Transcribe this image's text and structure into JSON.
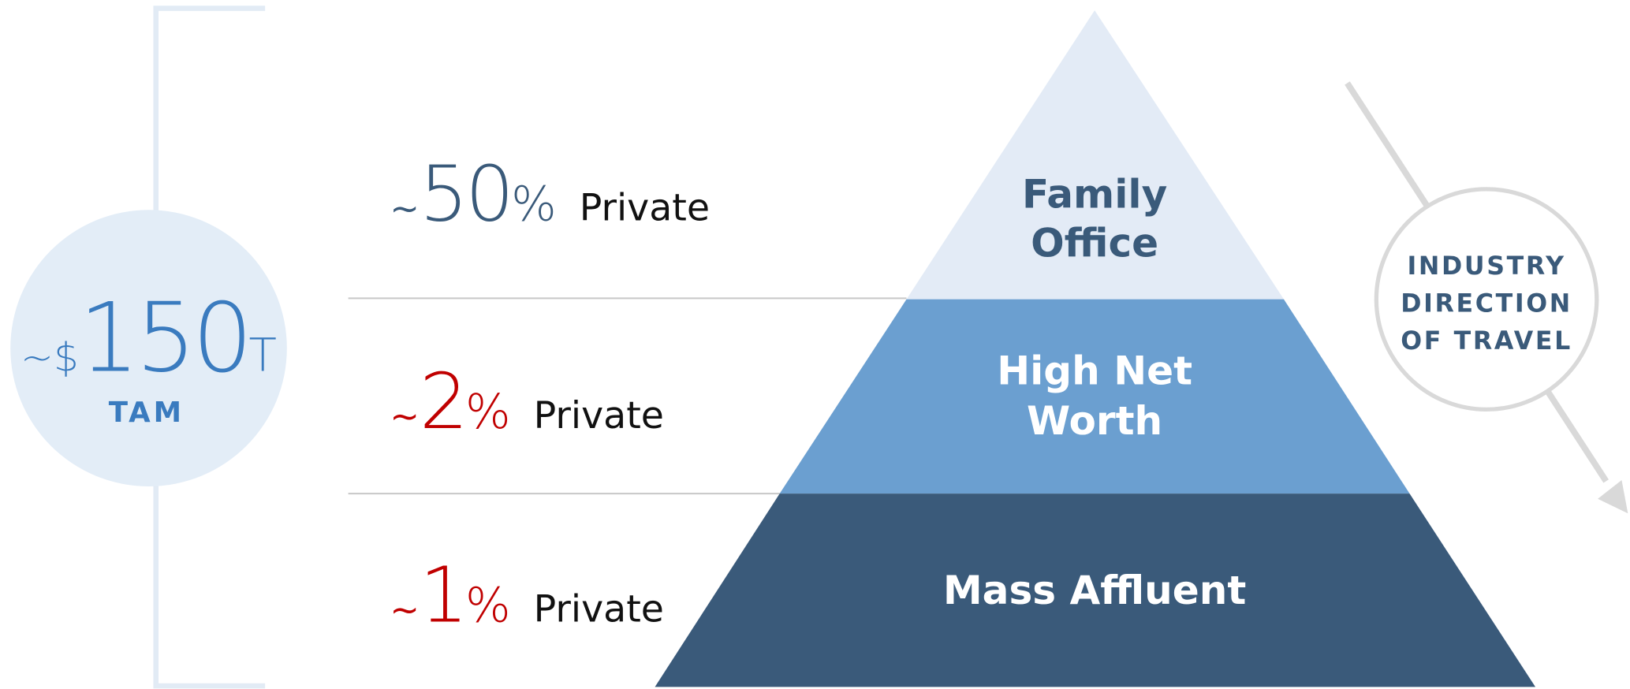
{
  "tam": {
    "prefix": "~$",
    "value": "150",
    "suffix": "T",
    "label": "TAM"
  },
  "rows": [
    {
      "tilde": "~",
      "number": "50",
      "percent": "%",
      "label": "Private"
    },
    {
      "tilde": "~",
      "number": "2",
      "percent": "%",
      "label": "Private"
    },
    {
      "tilde": "~",
      "number": "1",
      "percent": "%",
      "label": "Private"
    }
  ],
  "tiers": [
    {
      "lines": [
        "Family",
        "Office"
      ]
    },
    {
      "lines": [
        "High Net",
        "Worth"
      ]
    },
    {
      "lines": [
        "Mass Affluent"
      ]
    }
  ],
  "direction": {
    "lines": [
      "INDUSTRY",
      "DIRECTION",
      "OF TRAVEL"
    ]
  }
}
